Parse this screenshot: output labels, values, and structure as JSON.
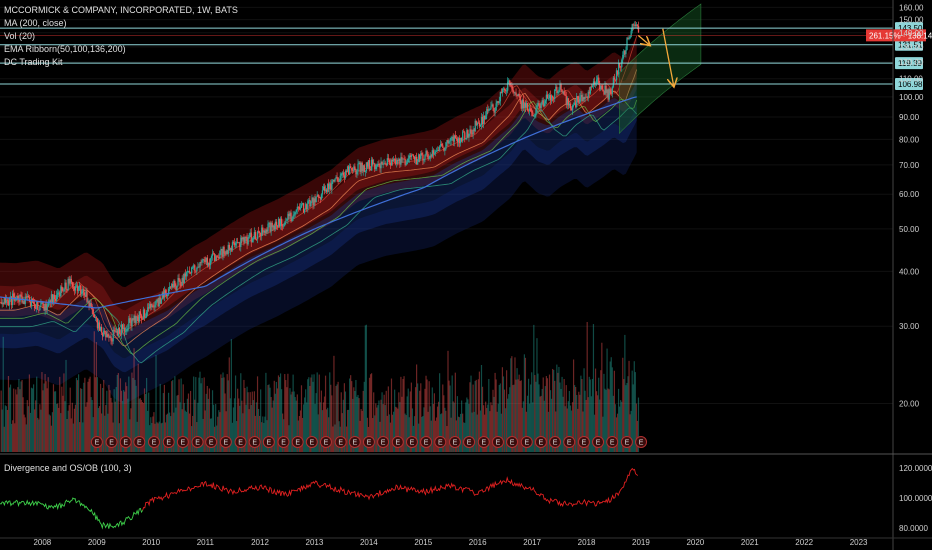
{
  "legend": {
    "title": "MCCORMICK & COMPANY, INCORPORATED, 1W, BATS",
    "lines": [
      "MA (200, close)",
      "Vol (20)",
      "EMA Ribborn(50,100,136,200)",
      "DC Trading Kit"
    ]
  },
  "oscillator": {
    "title": "Divergence and OS/OB (100, 3)",
    "ticks": [
      "120.0000",
      "100.0000",
      "80.0000"
    ],
    "tick_values": [
      120,
      100,
      80
    ],
    "ylim": [
      74,
      128
    ]
  },
  "colors": {
    "background": "#000000",
    "up": "#26a69a",
    "down": "#ef5350",
    "level_line": "#8fd6d9",
    "level_tag": "#8fd6d9",
    "price_tag": "#e53935",
    "arrow": "#f4a83a"
  },
  "chart_data": {
    "type": "candlestick",
    "x": [
      "2008",
      "2009",
      "2010",
      "2011",
      "2012",
      "2013",
      "2014",
      "2015",
      "2016",
      "2017",
      "2018",
      "2019",
      "2020",
      "2021",
      "2022",
      "2023"
    ],
    "x_values": [
      2008,
      2009,
      2010,
      2011,
      2012,
      2013,
      2014,
      2015,
      2016,
      2017,
      2018,
      2019,
      2020,
      2021,
      2022,
      2023
    ],
    "xlim": [
      2007.22,
      2023.63
    ],
    "ylim": [
      15.5,
      162
    ],
    "y_ticks": [
      160,
      150,
      140,
      130,
      120,
      110,
      100,
      90,
      80,
      70,
      60,
      50,
      40,
      30,
      20
    ],
    "price_path": [
      [
        2007.2,
        34
      ],
      [
        2007.6,
        35
      ],
      [
        2008.0,
        33
      ],
      [
        2008.5,
        38
      ],
      [
        2008.8,
        35
      ],
      [
        2009.0,
        30
      ],
      [
        2009.2,
        28
      ],
      [
        2009.5,
        30
      ],
      [
        2010.0,
        33
      ],
      [
        2010.5,
        38
      ],
      [
        2011.0,
        42
      ],
      [
        2011.5,
        46
      ],
      [
        2012.0,
        49
      ],
      [
        2012.5,
        53
      ],
      [
        2013.0,
        58
      ],
      [
        2013.5,
        67
      ],
      [
        2014.0,
        70
      ],
      [
        2014.5,
        71
      ],
      [
        2014.9,
        72
      ],
      [
        2015.3,
        77
      ],
      [
        2015.8,
        82
      ],
      [
        2016.3,
        95
      ],
      [
        2016.55,
        107
      ],
      [
        2016.8,
        96
      ],
      [
        2017.0,
        92
      ],
      [
        2017.2,
        98
      ],
      [
        2017.5,
        104
      ],
      [
        2017.7,
        95
      ],
      [
        2018.0,
        102
      ],
      [
        2018.2,
        108
      ],
      [
        2018.4,
        101
      ],
      [
        2018.6,
        118
      ],
      [
        2018.75,
        135
      ],
      [
        2018.87,
        151
      ],
      [
        2018.95,
        138
      ]
    ],
    "price_scale": "log",
    "horizontal_levels": [
      143.5,
      131.51,
      119.39,
      106.98
    ],
    "level_labels": [
      "143.50",
      "131.51",
      "119.39",
      "106.98"
    ],
    "current_price": {
      "value": 138.14,
      "label": "261.15% · 138.14"
    },
    "projection_path": [
      [
        2018.95,
        138
      ],
      [
        2019.15,
        131.5
      ],
      [
        2019.4,
        143
      ],
      [
        2019.6,
        106
      ]
    ],
    "ma200_path": [
      [
        2007.2,
        35
      ],
      [
        2009,
        33
      ],
      [
        2011,
        37
      ],
      [
        2013,
        50
      ],
      [
        2015,
        62
      ],
      [
        2017,
        82
      ],
      [
        2018.9,
        100
      ]
    ],
    "earnings_marker": "E",
    "earnings_x": [
      2009.0,
      2009.27,
      2009.53,
      2009.78,
      2010.05,
      2010.32,
      2010.58,
      2010.85,
      2011.1,
      2011.37,
      2011.64,
      2011.9,
      2012.16,
      2012.43,
      2012.69,
      2012.95,
      2013.21,
      2013.48,
      2013.74,
      2014.0,
      2014.26,
      2014.53,
      2014.79,
      2015.05,
      2015.31,
      2015.58,
      2015.84,
      2016.11,
      2016.37,
      2016.63,
      2016.9,
      2017.16,
      2017.42,
      2017.68,
      2017.95,
      2018.21,
      2018.47,
      2018.74,
      2019.0
    ],
    "oscillator_path": [
      [
        2007.2,
        96
      ],
      [
        2007.8,
        97
      ],
      [
        2008.2,
        93
      ],
      [
        2008.6,
        99
      ],
      [
        2008.9,
        91
      ],
      [
        2009.1,
        82
      ],
      [
        2009.3,
        81
      ],
      [
        2009.6,
        86
      ],
      [
        2010.0,
        98
      ],
      [
        2010.5,
        104
      ],
      [
        2011.0,
        110
      ],
      [
        2011.5,
        104
      ],
      [
        2012.0,
        107
      ],
      [
        2012.5,
        102
      ],
      [
        2013.0,
        110
      ],
      [
        2013.5,
        105
      ],
      [
        2014.0,
        101
      ],
      [
        2014.5,
        107
      ],
      [
        2015.0,
        104
      ],
      [
        2015.5,
        108
      ],
      [
        2016.0,
        103
      ],
      [
        2016.5,
        112
      ],
      [
        2017.0,
        106
      ],
      [
        2017.3,
        98
      ],
      [
        2017.6,
        96
      ],
      [
        2018.0,
        97
      ],
      [
        2018.3,
        96
      ],
      [
        2018.6,
        103
      ],
      [
        2018.85,
        120
      ],
      [
        2018.95,
        114
      ]
    ],
    "osc_green_until": 2009.85
  }
}
